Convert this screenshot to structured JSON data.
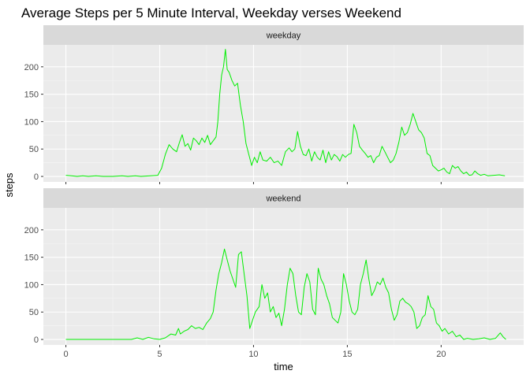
{
  "chart_data": {
    "type": "line",
    "title": "Average Steps per 5 Minute Interval, Weekday verses Weekend",
    "xlabel": "time",
    "ylabel": "steps",
    "xlim": [
      -1.2,
      24.4
    ],
    "ylim": [
      -10,
      240
    ],
    "x_ticks": [
      0,
      5,
      10,
      15,
      20
    ],
    "y_ticks": [
      0,
      50,
      100,
      150,
      200
    ],
    "grid": true,
    "line_color": "#00ee00",
    "panel_bg": "#ebebeb",
    "strip_bg": "#d9d9d9",
    "panels": [
      {
        "strip": "weekday",
        "points": [
          [
            0,
            2
          ],
          [
            0.3,
            1
          ],
          [
            0.6,
            0
          ],
          [
            0.9,
            1
          ],
          [
            1.2,
            0
          ],
          [
            1.6,
            1
          ],
          [
            2,
            0
          ],
          [
            2.5,
            0
          ],
          [
            3,
            1
          ],
          [
            3.3,
            0
          ],
          [
            3.7,
            1
          ],
          [
            4,
            0
          ],
          [
            4.5,
            1
          ],
          [
            4.9,
            2
          ],
          [
            5.1,
            15
          ],
          [
            5.3,
            40
          ],
          [
            5.5,
            58
          ],
          [
            5.7,
            50
          ],
          [
            5.9,
            45
          ],
          [
            6.05,
            62
          ],
          [
            6.2,
            76
          ],
          [
            6.35,
            55
          ],
          [
            6.5,
            60
          ],
          [
            6.65,
            48
          ],
          [
            6.8,
            70
          ],
          [
            6.95,
            65
          ],
          [
            7.1,
            58
          ],
          [
            7.25,
            70
          ],
          [
            7.4,
            62
          ],
          [
            7.55,
            75
          ],
          [
            7.7,
            58
          ],
          [
            7.85,
            65
          ],
          [
            8.0,
            72
          ],
          [
            8.1,
            100
          ],
          [
            8.2,
            150
          ],
          [
            8.3,
            185
          ],
          [
            8.4,
            200
          ],
          [
            8.5,
            232
          ],
          [
            8.6,
            195
          ],
          [
            8.7,
            190
          ],
          [
            8.85,
            175
          ],
          [
            9.0,
            165
          ],
          [
            9.15,
            170
          ],
          [
            9.3,
            130
          ],
          [
            9.45,
            100
          ],
          [
            9.6,
            60
          ],
          [
            9.75,
            40
          ],
          [
            9.9,
            20
          ],
          [
            10.05,
            35
          ],
          [
            10.2,
            25
          ],
          [
            10.35,
            45
          ],
          [
            10.5,
            30
          ],
          [
            10.7,
            28
          ],
          [
            10.9,
            35
          ],
          [
            11.1,
            25
          ],
          [
            11.3,
            28
          ],
          [
            11.5,
            20
          ],
          [
            11.7,
            45
          ],
          [
            11.9,
            52
          ],
          [
            12.05,
            45
          ],
          [
            12.2,
            50
          ],
          [
            12.35,
            82
          ],
          [
            12.5,
            55
          ],
          [
            12.65,
            40
          ],
          [
            12.8,
            38
          ],
          [
            12.95,
            50
          ],
          [
            13.1,
            28
          ],
          [
            13.25,
            45
          ],
          [
            13.4,
            35
          ],
          [
            13.55,
            30
          ],
          [
            13.7,
            48
          ],
          [
            13.85,
            25
          ],
          [
            14.0,
            45
          ],
          [
            14.15,
            30
          ],
          [
            14.3,
            40
          ],
          [
            14.45,
            36
          ],
          [
            14.6,
            28
          ],
          [
            14.75,
            40
          ],
          [
            14.9,
            35
          ],
          [
            15.05,
            40
          ],
          [
            15.2,
            42
          ],
          [
            15.35,
            95
          ],
          [
            15.5,
            80
          ],
          [
            15.65,
            55
          ],
          [
            15.8,
            48
          ],
          [
            15.95,
            42
          ],
          [
            16.1,
            35
          ],
          [
            16.25,
            38
          ],
          [
            16.4,
            25
          ],
          [
            16.55,
            35
          ],
          [
            16.7,
            38
          ],
          [
            16.85,
            55
          ],
          [
            17.0,
            45
          ],
          [
            17.15,
            35
          ],
          [
            17.3,
            25
          ],
          [
            17.45,
            30
          ],
          [
            17.6,
            42
          ],
          [
            17.75,
            63
          ],
          [
            17.9,
            90
          ],
          [
            18.05,
            75
          ],
          [
            18.2,
            80
          ],
          [
            18.35,
            95
          ],
          [
            18.5,
            115
          ],
          [
            18.65,
            100
          ],
          [
            18.8,
            85
          ],
          [
            18.95,
            80
          ],
          [
            19.1,
            70
          ],
          [
            19.25,
            42
          ],
          [
            19.4,
            38
          ],
          [
            19.55,
            20
          ],
          [
            19.7,
            15
          ],
          [
            19.85,
            10
          ],
          [
            20.0,
            12
          ],
          [
            20.15,
            15
          ],
          [
            20.3,
            8
          ],
          [
            20.45,
            5
          ],
          [
            20.6,
            20
          ],
          [
            20.75,
            15
          ],
          [
            20.9,
            18
          ],
          [
            21.05,
            10
          ],
          [
            21.2,
            5
          ],
          [
            21.35,
            8
          ],
          [
            21.5,
            2
          ],
          [
            21.65,
            3
          ],
          [
            21.8,
            10
          ],
          [
            21.95,
            5
          ],
          [
            22.1,
            2
          ],
          [
            22.3,
            4
          ],
          [
            22.5,
            1
          ],
          [
            22.8,
            2
          ],
          [
            23.1,
            3
          ],
          [
            23.4,
            1
          ]
        ]
      },
      {
        "strip": "weekend",
        "points": [
          [
            0,
            0
          ],
          [
            0.3,
            0
          ],
          [
            0.6,
            0
          ],
          [
            1.0,
            0
          ],
          [
            1.5,
            0
          ],
          [
            2,
            0
          ],
          [
            2.5,
            0
          ],
          [
            3,
            0
          ],
          [
            3.5,
            0
          ],
          [
            3.8,
            3
          ],
          [
            4.1,
            0
          ],
          [
            4.4,
            4
          ],
          [
            4.7,
            1
          ],
          [
            5.0,
            0
          ],
          [
            5.3,
            3
          ],
          [
            5.6,
            10
          ],
          [
            5.85,
            8
          ],
          [
            6.0,
            20
          ],
          [
            6.1,
            10
          ],
          [
            6.3,
            15
          ],
          [
            6.5,
            18
          ],
          [
            6.7,
            25
          ],
          [
            6.9,
            20
          ],
          [
            7.1,
            22
          ],
          [
            7.3,
            18
          ],
          [
            7.5,
            30
          ],
          [
            7.7,
            38
          ],
          [
            7.85,
            50
          ],
          [
            8.0,
            90
          ],
          [
            8.15,
            120
          ],
          [
            8.3,
            140
          ],
          [
            8.45,
            165
          ],
          [
            8.6,
            145
          ],
          [
            8.75,
            125
          ],
          [
            8.9,
            110
          ],
          [
            9.05,
            95
          ],
          [
            9.2,
            155
          ],
          [
            9.35,
            160
          ],
          [
            9.5,
            120
          ],
          [
            9.65,
            80
          ],
          [
            9.8,
            20
          ],
          [
            9.95,
            35
          ],
          [
            10.1,
            50
          ],
          [
            10.3,
            60
          ],
          [
            10.45,
            100
          ],
          [
            10.6,
            75
          ],
          [
            10.75,
            85
          ],
          [
            10.9,
            50
          ],
          [
            11.05,
            60
          ],
          [
            11.2,
            40
          ],
          [
            11.35,
            48
          ],
          [
            11.5,
            25
          ],
          [
            11.65,
            55
          ],
          [
            11.8,
            100
          ],
          [
            11.95,
            130
          ],
          [
            12.1,
            120
          ],
          [
            12.25,
            80
          ],
          [
            12.4,
            50
          ],
          [
            12.55,
            45
          ],
          [
            12.7,
            95
          ],
          [
            12.85,
            120
          ],
          [
            13.0,
            105
          ],
          [
            13.15,
            55
          ],
          [
            13.3,
            45
          ],
          [
            13.45,
            130
          ],
          [
            13.6,
            110
          ],
          [
            13.75,
            100
          ],
          [
            13.9,
            80
          ],
          [
            14.05,
            65
          ],
          [
            14.2,
            40
          ],
          [
            14.35,
            35
          ],
          [
            14.5,
            30
          ],
          [
            14.65,
            50
          ],
          [
            14.8,
            120
          ],
          [
            14.95,
            100
          ],
          [
            15.1,
            70
          ],
          [
            15.25,
            50
          ],
          [
            15.4,
            45
          ],
          [
            15.55,
            55
          ],
          [
            15.7,
            100
          ],
          [
            15.85,
            120
          ],
          [
            16.0,
            145
          ],
          [
            16.15,
            110
          ],
          [
            16.3,
            80
          ],
          [
            16.45,
            90
          ],
          [
            16.6,
            105
          ],
          [
            16.75,
            100
          ],
          [
            16.9,
            112
          ],
          [
            17.05,
            95
          ],
          [
            17.2,
            85
          ],
          [
            17.35,
            55
          ],
          [
            17.5,
            35
          ],
          [
            17.65,
            45
          ],
          [
            17.8,
            70
          ],
          [
            17.95,
            75
          ],
          [
            18.1,
            68
          ],
          [
            18.25,
            65
          ],
          [
            18.4,
            60
          ],
          [
            18.55,
            50
          ],
          [
            18.7,
            20
          ],
          [
            18.85,
            25
          ],
          [
            19.0,
            40
          ],
          [
            19.15,
            45
          ],
          [
            19.3,
            80
          ],
          [
            19.45,
            60
          ],
          [
            19.6,
            55
          ],
          [
            19.75,
            30
          ],
          [
            19.9,
            25
          ],
          [
            20.05,
            15
          ],
          [
            20.2,
            20
          ],
          [
            20.4,
            10
          ],
          [
            20.6,
            15
          ],
          [
            20.8,
            5
          ],
          [
            21.0,
            8
          ],
          [
            21.2,
            0
          ],
          [
            21.4,
            2
          ],
          [
            21.7,
            0
          ],
          [
            22.0,
            1
          ],
          [
            22.3,
            3
          ],
          [
            22.6,
            0
          ],
          [
            22.9,
            2
          ],
          [
            23.15,
            12
          ],
          [
            23.3,
            5
          ],
          [
            23.45,
            0
          ]
        ]
      }
    ]
  }
}
